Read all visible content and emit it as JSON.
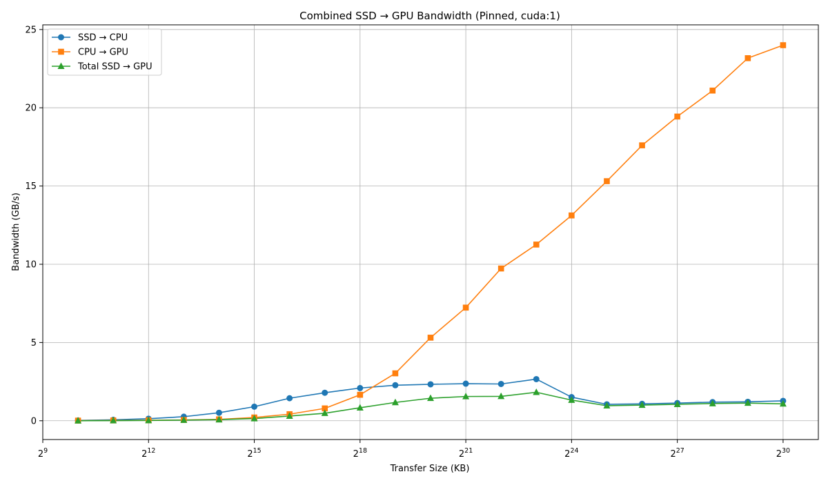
{
  "chart_data": {
    "type": "line",
    "title": "Combined SSD → GPU Bandwidth (Pinned, cuda:1)",
    "xlabel": "Transfer Size (KB)",
    "ylabel": "Bandwidth (GB/s)",
    "x_scale": "log2",
    "xlim_exponent": [
      9,
      31
    ],
    "ylim": [
      -1.2,
      25.3
    ],
    "x_ticks": [
      {
        "base": "2",
        "exp": "9",
        "e": 9
      },
      {
        "base": "2",
        "exp": "12",
        "e": 12
      },
      {
        "base": "2",
        "exp": "15",
        "e": 15
      },
      {
        "base": "2",
        "exp": "18",
        "e": 18
      },
      {
        "base": "2",
        "exp": "21",
        "e": 21
      },
      {
        "base": "2",
        "exp": "24",
        "e": 24
      },
      {
        "base": "2",
        "exp": "27",
        "e": 27
      },
      {
        "base": "2",
        "exp": "30",
        "e": 30
      }
    ],
    "y_ticks": [
      {
        "v": 0,
        "label": "0"
      },
      {
        "v": 5,
        "label": "5"
      },
      {
        "v": 10,
        "label": "10"
      },
      {
        "v": 15,
        "label": "15"
      },
      {
        "v": 20,
        "label": "20"
      },
      {
        "v": 25,
        "label": "25"
      }
    ],
    "grid": true,
    "legend_position": "top-left",
    "x": [
      1024,
      2048,
      4096,
      8192,
      16384,
      32768,
      65536,
      131072,
      262144,
      524288,
      1048576,
      2097152,
      4194304,
      8388608,
      16777216,
      33554432,
      67108864,
      134217728,
      268435456,
      536870912,
      1073741824
    ],
    "series": [
      {
        "name": "SSD → CPU",
        "color": "#1f77b4",
        "marker": "circle",
        "values": [
          0.02,
          0.06,
          0.13,
          0.26,
          0.51,
          0.9,
          1.44,
          1.79,
          2.09,
          2.27,
          2.33,
          2.37,
          2.35,
          2.66,
          1.51,
          1.05,
          1.08,
          1.13,
          1.19,
          1.21,
          1.27
        ]
      },
      {
        "name": "CPU → GPU",
        "color": "#ff7f0e",
        "marker": "square",
        "values": [
          0.01,
          0.02,
          0.03,
          0.05,
          0.09,
          0.21,
          0.42,
          0.79,
          1.66,
          3.03,
          5.31,
          7.23,
          9.73,
          11.26,
          13.12,
          15.31,
          17.6,
          19.44,
          21.1,
          23.17,
          24.0
        ]
      },
      {
        "name": "Total SSD → GPU",
        "color": "#2ca02c",
        "marker": "triangle",
        "values": [
          0.0,
          0.01,
          0.02,
          0.04,
          0.07,
          0.14,
          0.3,
          0.48,
          0.83,
          1.17,
          1.44,
          1.55,
          1.56,
          1.82,
          1.32,
          0.96,
          1.0,
          1.05,
          1.1,
          1.13,
          1.08
        ]
      }
    ]
  }
}
